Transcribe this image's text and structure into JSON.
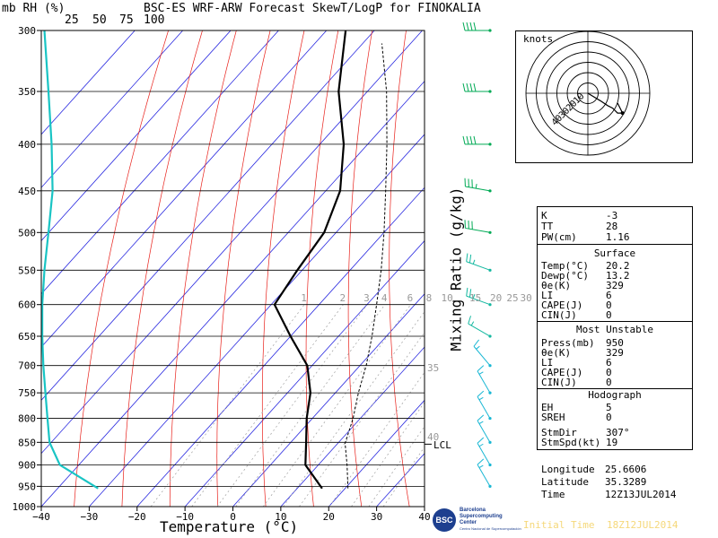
{
  "header": {
    "units_left": "mb RH (%)",
    "rh_ticks": [
      "25",
      "50",
      "75",
      "100"
    ],
    "title": "BSC-ES WRF-ARW Forecast SkewT/LogP for FINOKALIA"
  },
  "axes": {
    "x_title": "Temperature (°C)",
    "mixing_ratio_title": "Mixing Ratio (g/kg)",
    "mixing_ratio_ticks": [
      "1",
      "2",
      "3",
      "4",
      "6",
      "8",
      "10",
      "15",
      "20",
      "25",
      "30"
    ],
    "theta_labels": [
      "35",
      "40"
    ],
    "lcl_label": "LCL"
  },
  "chart_data": {
    "type": "skewt",
    "title": "BSC-ES WRF-ARW Forecast SkewT/LogP for FINOKALIA",
    "xlabel": "Temperature (°C)",
    "ylabel": "mb",
    "xlim": [
      -40,
      40
    ],
    "xticks": [
      -40,
      -30,
      -20,
      -10,
      0,
      10,
      20,
      30,
      40
    ],
    "pressure_levels": [
      300,
      350,
      400,
      450,
      500,
      550,
      600,
      650,
      700,
      750,
      800,
      850,
      900,
      950,
      1000
    ],
    "pressure_tick_labels": [
      "300",
      "350",
      "400",
      "450",
      "500",
      "550",
      "600",
      "650",
      "700",
      "750",
      "800",
      "850",
      "900",
      "950",
      "1000"
    ],
    "x_tick_labels": [
      "−40",
      "−30",
      "−20",
      "−10",
      "0",
      "10",
      "20",
      "30",
      "40"
    ],
    "temperature_profile": [
      {
        "p": 955,
        "t": 15.2
      },
      {
        "p": 900,
        "t": 7.3
      },
      {
        "p": 850,
        "t": 3.2
      },
      {
        "p": 800,
        "t": -1.2
      },
      {
        "p": 750,
        "t": -5.2
      },
      {
        "p": 700,
        "t": -11.0
      },
      {
        "p": 650,
        "t": -20.0
      },
      {
        "p": 600,
        "t": -29.3
      },
      {
        "p": 550,
        "t": -31.0
      },
      {
        "p": 500,
        "t": -32.5
      },
      {
        "p": 450,
        "t": -37.0
      },
      {
        "p": 400,
        "t": -45.0
      },
      {
        "p": 350,
        "t": -56.0
      },
      {
        "p": 300,
        "t": -66.0
      }
    ],
    "parcel_profile": [
      {
        "p": 955,
        "t": 20.6
      },
      {
        "p": 900,
        "t": 16.0
      },
      {
        "p": 852,
        "t": 11.5
      },
      {
        "p": 800,
        "t": 8.5
      },
      {
        "p": 750,
        "t": 4.8
      },
      {
        "p": 700,
        "t": 1.3
      },
      {
        "p": 650,
        "t": -3.0
      },
      {
        "p": 600,
        "t": -8.0
      },
      {
        "p": 550,
        "t": -13.5
      },
      {
        "p": 500,
        "t": -20.0
      },
      {
        "p": 450,
        "t": -27.5
      },
      {
        "p": 400,
        "t": -36.0
      },
      {
        "p": 350,
        "t": -46.0
      },
      {
        "p": 310,
        "t": -56.0
      }
    ],
    "dewpoint_rh_profile": [
      {
        "p": 955,
        "rh": 55
      },
      {
        "p": 900,
        "rh": 18
      },
      {
        "p": 850,
        "rh": 8
      },
      {
        "p": 800,
        "rh": 6
      },
      {
        "p": 750,
        "rh": 4
      },
      {
        "p": 700,
        "rh": 2
      },
      {
        "p": 650,
        "rh": 1
      },
      {
        "p": 600,
        "rh": 1
      },
      {
        "p": 550,
        "rh": 3
      },
      {
        "p": 500,
        "rh": 7
      },
      {
        "p": 450,
        "rh": 11
      },
      {
        "p": 400,
        "rh": 10
      },
      {
        "p": 350,
        "rh": 7
      },
      {
        "p": 300,
        "rh": 3
      }
    ],
    "wind_barbs": [
      {
        "p": 300,
        "dir": 270,
        "spd": 40
      },
      {
        "p": 350,
        "dir": 270,
        "spd": 40
      },
      {
        "p": 400,
        "dir": 270,
        "spd": 40
      },
      {
        "p": 450,
        "dir": 280,
        "spd": 35
      },
      {
        "p": 500,
        "dir": 280,
        "spd": 30
      },
      {
        "p": 550,
        "dir": 290,
        "spd": 25
      },
      {
        "p": 600,
        "dir": 290,
        "spd": 25
      },
      {
        "p": 650,
        "dir": 300,
        "spd": 15
      },
      {
        "p": 700,
        "dir": 320,
        "spd": 15
      },
      {
        "p": 750,
        "dir": 330,
        "spd": 15
      },
      {
        "p": 800,
        "dir": 330,
        "spd": 15
      },
      {
        "p": 850,
        "dir": 330,
        "spd": 15
      },
      {
        "p": 900,
        "dir": 330,
        "spd": 15
      },
      {
        "p": 950,
        "dir": 330,
        "spd": 15
      }
    ]
  },
  "hodograph": {
    "units": "knots",
    "ring_labels": [
      "10",
      "20",
      "30",
      "40"
    ],
    "trace": [
      [
        0,
        0
      ],
      [
        5,
        -3
      ],
      [
        8,
        -5
      ],
      [
        10,
        -6
      ],
      [
        12,
        -8
      ],
      [
        14,
        -8
      ]
    ]
  },
  "indices": {
    "top": [
      {
        "label": "K",
        "value": "-3"
      },
      {
        "label": "TT",
        "value": "28"
      },
      {
        "label": "PW(cm)",
        "value": "1.16"
      }
    ],
    "surface_title": "Surface",
    "surface": [
      {
        "label": "Temp(°C)",
        "value": "20.2"
      },
      {
        "label": "Dewp(°C)",
        "value": "13.2"
      },
      {
        "label": "θe(K)",
        "value": "329"
      },
      {
        "label": "LI",
        "value": "6"
      },
      {
        "label": "CAPE(J)",
        "value": "0"
      },
      {
        "label": "CIN(J)",
        "value": "0"
      }
    ],
    "unstable_title": "Most Unstable",
    "unstable": [
      {
        "label": "Press(mb)",
        "value": "950"
      },
      {
        "label": "θe(K)",
        "value": "329"
      },
      {
        "label": "LI",
        "value": "6"
      },
      {
        "label": "CAPE(J)",
        "value": "0"
      },
      {
        "label": "CIN(J)",
        "value": "0"
      }
    ],
    "hodo_title": "Hodograph",
    "hodo": [
      {
        "label": "EH",
        "value": "5"
      },
      {
        "label": "SREH",
        "value": "0"
      },
      {
        "label": "StmDir",
        "value": "307°"
      },
      {
        "label": "StmSpd(kt)",
        "value": "19"
      }
    ]
  },
  "location": {
    "longitude_label": "Longitude",
    "longitude": "25.6606",
    "latitude_label": "Latitude",
    "latitude": "35.3289",
    "time_label": "Time",
    "time": "12Z13JUL2014"
  },
  "footer": {
    "org_line1": "Barcelona",
    "org_line2": "Supercomputing",
    "org_line3": "Center",
    "org_line4": "Centro Nacional de Supercomputación",
    "initial_time_label": "Initial Time",
    "initial_time": "18Z12JUL2014"
  },
  "colors": {
    "dry_adiabat": "#e8201a",
    "isotherm": "#2a2ae0",
    "dewpoint": "#19c4c4",
    "barb": "#00aa55",
    "footer_text": "#f5d87a"
  }
}
